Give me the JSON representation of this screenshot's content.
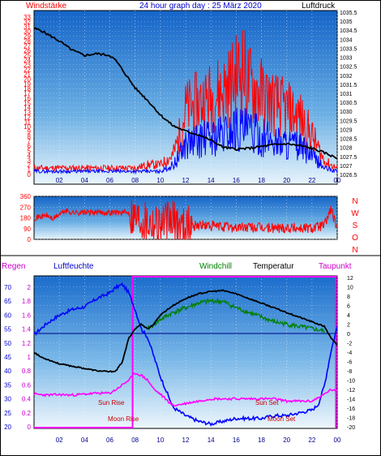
{
  "header": {
    "left_label": "Windstärke",
    "title": "24 hour graph day : 25 März 2020",
    "right_label": "Luftdruck"
  },
  "bottom_header": {
    "regen": "Regen",
    "luftfeuchte": "Luftfeuchte",
    "windchill": "Windchill",
    "temperatur": "Temperatur",
    "taupunkt": "Taupunkt"
  },
  "annotations": {
    "sun_rise": "Sun Rise",
    "moon_rise": "Moon Rise",
    "sun_set": "Sun Set",
    "moon_set": "Moon Set"
  },
  "colors": {
    "wind_gust": "#ff0000",
    "wind_avg": "#0000ff",
    "pressure": "#000000",
    "direction": "#ff0000",
    "humidity": "#0000ff",
    "windchill": "#008000",
    "temperature": "#000000",
    "dewpoint": "#ff00ff",
    "rain": "#ff00ff"
  },
  "chart_data": [
    {
      "type": "line",
      "x_ticks": [
        "02",
        "04",
        "06",
        "08",
        "10",
        "12",
        "14",
        "16",
        "18",
        "20",
        "22",
        "00"
      ],
      "x_range_hours": [
        0,
        24
      ],
      "y_left": {
        "label": "Windstärke",
        "ticks": [
          0,
          1,
          2,
          3,
          4,
          5,
          6,
          7,
          8,
          9,
          10,
          11,
          12,
          13,
          14,
          15,
          16,
          17,
          18,
          19,
          20,
          21,
          22,
          23,
          24,
          25,
          26,
          27,
          28,
          29,
          30,
          31,
          32,
          33
        ]
      },
      "y_right": {
        "label": "Luftdruck",
        "ticks": [
          "1026.5",
          "1027",
          "1027.5",
          "1028",
          "1028.5",
          "1029",
          "1029.5",
          "1030",
          "1030.5",
          "1031",
          "1031.5",
          "1032",
          "1032.5",
          "1033",
          "1033.5",
          "1034",
          "1034.5",
          "1035",
          "1035.5"
        ]
      },
      "series": [
        {
          "name": "Luftdruck",
          "axis": "right",
          "x": [
            0,
            0.5,
            1,
            2,
            3,
            4,
            5,
            6,
            6.5,
            7,
            7.5,
            8,
            9,
            10,
            10.5,
            11,
            12,
            13,
            14,
            15,
            16,
            17,
            18,
            19,
            20,
            21,
            22,
            23,
            24
          ],
          "y": [
            1034.6,
            1034.5,
            1034.3,
            1033.9,
            1033.4,
            1033.1,
            1033.2,
            1033.1,
            1032.8,
            1032.3,
            1031.8,
            1031.3,
            1030.6,
            1029.8,
            1029.5,
            1029.2,
            1028.9,
            1028.7,
            1028.4,
            1028.0,
            1027.9,
            1027.95,
            1028.05,
            1028.15,
            1028.2,
            1028.1,
            1027.95,
            1027.7,
            1027.4
          ]
        },
        {
          "name": "Wind gust",
          "axis": "left",
          "x": [
            0,
            1,
            2,
            3,
            4,
            5,
            6,
            7,
            8,
            9,
            10,
            11,
            11.5,
            12,
            13,
            14,
            15,
            16,
            16.5,
            17,
            18,
            19,
            20,
            21,
            22,
            23,
            24
          ],
          "y": [
            2,
            2,
            2,
            2,
            2,
            2,
            2,
            2,
            2,
            3,
            3,
            6,
            12,
            20,
            22,
            24,
            26,
            30,
            33,
            28,
            25,
            22,
            20,
            18,
            12,
            4,
            2
          ]
        },
        {
          "name": "Wind avg",
          "axis": "left",
          "x": [
            0,
            1,
            2,
            3,
            4,
            5,
            6,
            7,
            8,
            9,
            10,
            11,
            11.5,
            12,
            13,
            14,
            15,
            16,
            17,
            18,
            19,
            20,
            21,
            22,
            23,
            24
          ],
          "y": [
            1,
            1,
            1,
            1,
            1,
            1,
            1,
            1,
            1,
            1,
            1,
            3,
            6,
            10,
            11,
            12,
            13,
            15,
            14,
            12,
            11,
            10,
            9,
            6,
            2,
            1
          ]
        }
      ]
    },
    {
      "type": "line",
      "x_ticks": [
        "02",
        "04",
        "06",
        "08",
        "10",
        "12",
        "14",
        "16",
        "18",
        "20",
        "22",
        "00"
      ],
      "y_left": {
        "ticks": [
          0,
          90,
          180,
          270,
          360
        ]
      },
      "y_right": {
        "ticks": [
          "N",
          "W",
          "S",
          "O",
          "N"
        ]
      },
      "series": [
        {
          "name": "Windrichtung",
          "x": [
            0,
            0.5,
            1,
            1.5,
            2,
            2.5,
            3,
            4,
            5,
            6,
            7,
            7.5,
            8,
            9,
            10,
            11,
            12,
            13,
            14,
            15,
            16,
            17,
            18,
            19,
            20,
            21,
            22,
            23,
            23.5,
            24
          ],
          "y": [
            180,
            190,
            200,
            170,
            210,
            240,
            225,
            225,
            225,
            225,
            225,
            225,
            200,
            160,
            140,
            150,
            110,
            120,
            110,
            105,
            100,
            100,
            95,
            95,
            100,
            95,
            95,
            120,
            260,
            80
          ]
        }
      ]
    },
    {
      "type": "line",
      "x_ticks": [
        "02",
        "04",
        "06",
        "08",
        "10",
        "12",
        "14",
        "16",
        "18",
        "20",
        "22",
        "00"
      ],
      "y_regen": {
        "label": "Regen",
        "ticks": [
          "0",
          "0.2",
          "0.4",
          "0.6",
          "0.8",
          "1",
          "1.2",
          "1.4",
          "1.6",
          "1.8",
          "2"
        ]
      },
      "y_humidity": {
        "label": "Luftfeuchte",
        "ticks": [
          20,
          25,
          30,
          35,
          40,
          45,
          50,
          55,
          60,
          65,
          70
        ]
      },
      "y_temp": {
        "label": "Temperatur",
        "ticks": [
          -20,
          -18,
          -16,
          -14,
          -12,
          -10,
          -8,
          -6,
          -4,
          -2,
          0,
          2,
          4,
          6,
          8,
          10,
          12
        ]
      },
      "series": [
        {
          "name": "Luftfeuchte",
          "axis": "humidity",
          "x": [
            0,
            0.5,
            1,
            2,
            3,
            4,
            5,
            6,
            6.5,
            7,
            7.5,
            8,
            8.5,
            9,
            9.5,
            10,
            11,
            12,
            13,
            14,
            15,
            16,
            17,
            18,
            19,
            20,
            21,
            22,
            22.5,
            23,
            23.5,
            24
          ],
          "y": [
            53,
            55,
            57,
            60,
            62,
            63,
            66,
            68,
            70,
            71,
            68,
            62,
            55,
            52,
            45,
            38,
            27,
            24,
            22,
            21,
            22,
            23,
            23,
            23,
            24,
            24,
            25,
            26,
            28,
            35,
            47,
            56
          ]
        },
        {
          "name": "Temperatur",
          "axis": "temp",
          "x": [
            0,
            0.5,
            1,
            2,
            3,
            4,
            5,
            6,
            6.5,
            7,
            7.5,
            8,
            8.5,
            9,
            9.5,
            10,
            11,
            12,
            13,
            14,
            15,
            16,
            17,
            18,
            19,
            20,
            21,
            22,
            23,
            23.5,
            24
          ],
          "y": [
            -4,
            -5,
            -5.5,
            -6.5,
            -7,
            -7.5,
            -8,
            -8.2,
            -8,
            -6,
            -1,
            1,
            2,
            1,
            2,
            4,
            6,
            7.5,
            8.5,
            9,
            9.2,
            8.5,
            7.5,
            6.5,
            5.5,
            4.5,
            3.5,
            2.5,
            1.5,
            -1,
            -2.5
          ]
        },
        {
          "name": "Windchill",
          "axis": "temp",
          "x": [
            9,
            9.5,
            10,
            11,
            12,
            13,
            14,
            15,
            16,
            17,
            18,
            19,
            20,
            21,
            22,
            23
          ],
          "y": [
            1,
            2,
            3,
            4.5,
            5.5,
            6.5,
            7,
            6.8,
            5.5,
            4.5,
            3.5,
            2.5,
            2,
            1.5,
            1,
            0.5
          ]
        },
        {
          "name": "Taupunkt",
          "axis": "temp",
          "x": [
            0,
            1,
            2,
            3,
            4,
            5,
            6,
            6.5,
            7,
            7.5,
            8,
            8.5,
            9,
            9.5,
            10,
            11,
            12,
            13,
            14,
            15,
            16,
            17,
            18,
            19,
            20,
            21,
            22,
            23,
            23.5,
            24
          ],
          "y": [
            -13,
            -13.2,
            -13.1,
            -13.2,
            -13,
            -12.8,
            -12.8,
            -12,
            -11,
            -10,
            -8.5,
            -9,
            -10,
            -12,
            -13,
            -15.5,
            -15,
            -14.5,
            -14,
            -14,
            -14,
            -14,
            -14,
            -14,
            -14.5,
            -14.5,
            -14.5,
            -13,
            -12,
            -12.5
          ]
        }
      ]
    }
  ]
}
